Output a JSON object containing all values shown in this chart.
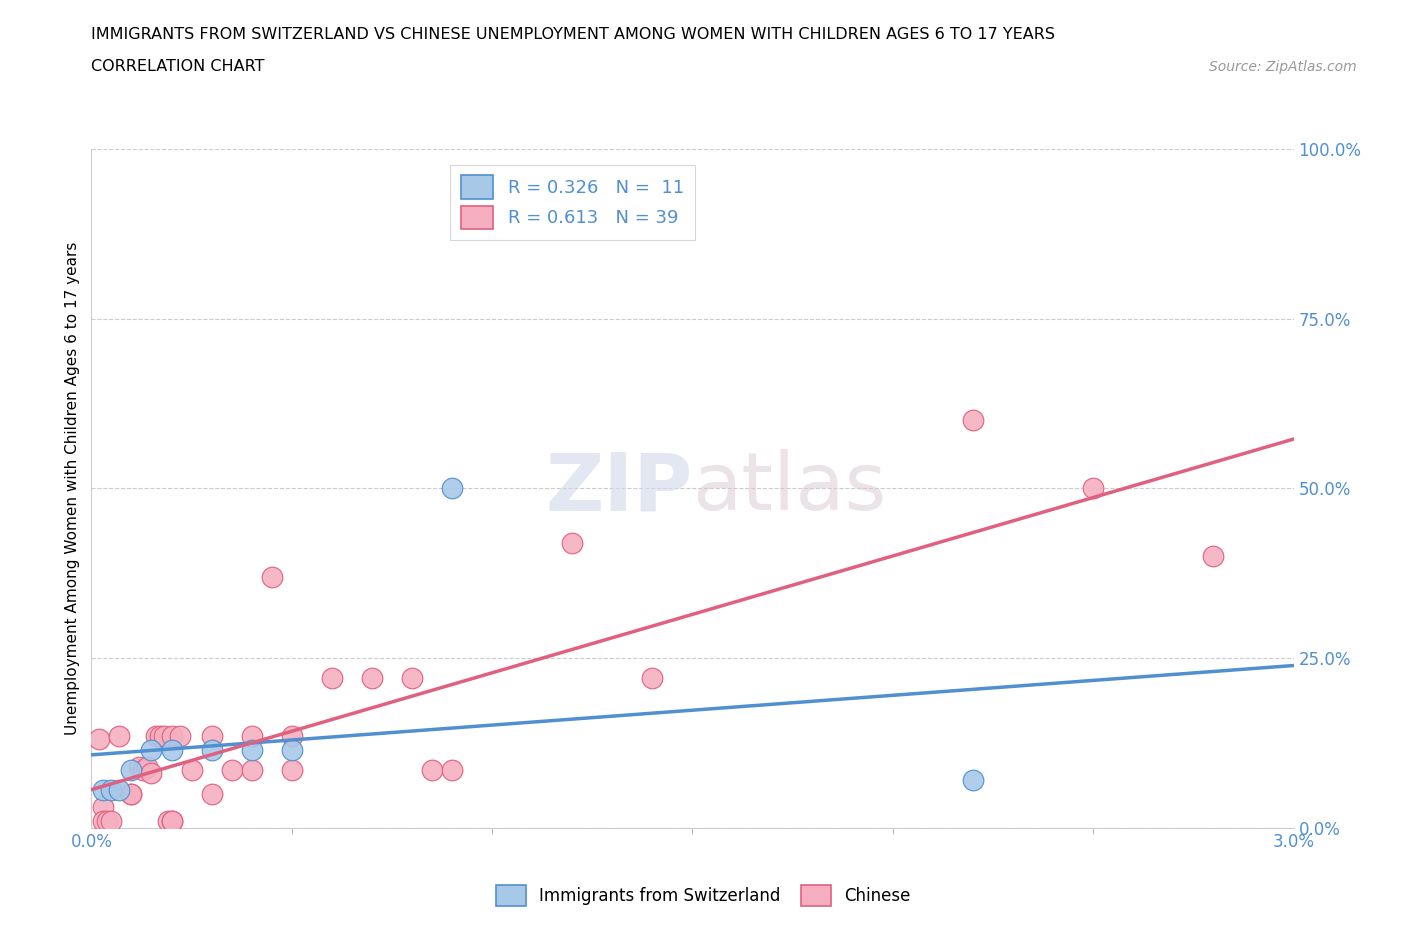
{
  "title": "IMMIGRANTS FROM SWITZERLAND VS CHINESE UNEMPLOYMENT AMONG WOMEN WITH CHILDREN AGES 6 TO 17 YEARS",
  "subtitle": "CORRELATION CHART",
  "source": "Source: ZipAtlas.com",
  "ylabel": "Unemployment Among Women with Children Ages 6 to 17 years",
  "xmin": 0.0,
  "xmax": 0.03,
  "ymin": 0.0,
  "ymax": 1.0,
  "ytick_vals": [
    0.0,
    0.25,
    0.5,
    0.75,
    1.0
  ],
  "swiss_color": "#a8c8e8",
  "chinese_color": "#f5afc0",
  "swiss_line_color": "#5090d0",
  "chinese_line_color": "#e06080",
  "swiss_R": 0.326,
  "swiss_N": 11,
  "chinese_R": 0.613,
  "chinese_N": 39,
  "legend_label_swiss": "Immigrants from Switzerland",
  "legend_label_chinese": "Chinese",
  "watermark_zip": "ZIP",
  "watermark_atlas": "atlas",
  "swiss_points": [
    [
      0.0003,
      0.055
    ],
    [
      0.0005,
      0.055
    ],
    [
      0.0007,
      0.055
    ],
    [
      0.001,
      0.085
    ],
    [
      0.0015,
      0.115
    ],
    [
      0.002,
      0.115
    ],
    [
      0.003,
      0.115
    ],
    [
      0.004,
      0.115
    ],
    [
      0.005,
      0.115
    ],
    [
      0.009,
      0.5
    ],
    [
      0.022,
      0.07
    ]
  ],
  "chinese_points": [
    [
      0.0002,
      0.13
    ],
    [
      0.0003,
      0.03
    ],
    [
      0.0003,
      0.01
    ],
    [
      0.0004,
      0.01
    ],
    [
      0.0005,
      0.01
    ],
    [
      0.0007,
      0.135
    ],
    [
      0.001,
      0.05
    ],
    [
      0.001,
      0.05
    ],
    [
      0.0012,
      0.09
    ],
    [
      0.0013,
      0.085
    ],
    [
      0.0014,
      0.09
    ],
    [
      0.0015,
      0.08
    ],
    [
      0.0016,
      0.135
    ],
    [
      0.0017,
      0.135
    ],
    [
      0.0018,
      0.135
    ],
    [
      0.0019,
      0.01
    ],
    [
      0.002,
      0.01
    ],
    [
      0.002,
      0.01
    ],
    [
      0.002,
      0.135
    ],
    [
      0.0022,
      0.135
    ],
    [
      0.0025,
      0.085
    ],
    [
      0.003,
      0.05
    ],
    [
      0.003,
      0.135
    ],
    [
      0.0035,
      0.085
    ],
    [
      0.004,
      0.135
    ],
    [
      0.004,
      0.085
    ],
    [
      0.0045,
      0.37
    ],
    [
      0.005,
      0.135
    ],
    [
      0.005,
      0.085
    ],
    [
      0.006,
      0.22
    ],
    [
      0.007,
      0.22
    ],
    [
      0.008,
      0.22
    ],
    [
      0.0085,
      0.085
    ],
    [
      0.009,
      0.085
    ],
    [
      0.012,
      0.42
    ],
    [
      0.014,
      0.22
    ],
    [
      0.022,
      0.6
    ],
    [
      0.025,
      0.5
    ],
    [
      0.028,
      0.4
    ]
  ]
}
